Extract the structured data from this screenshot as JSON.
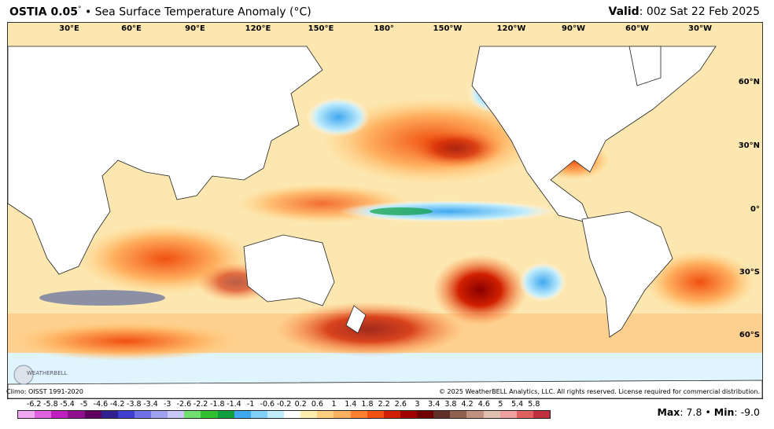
{
  "header": {
    "model": "OSTIA 0.05",
    "degree": "°",
    "bullet": "•",
    "product": "Sea Surface Temperature Anomaly (°C)",
    "valid_label": "Valid",
    "valid_value": ": 00z Sat 22 Feb 2025"
  },
  "map": {
    "lon_labels": [
      "30°E",
      "60°E",
      "90°E",
      "120°E",
      "150°E",
      "180°",
      "150°W",
      "120°W",
      "90°W",
      "60°W",
      "30°W"
    ],
    "lat_labels": [
      "60°N",
      "30°N",
      "0°",
      "30°S",
      "60°S"
    ],
    "logo_text": "WEATHERBELL"
  },
  "footer": {
    "climo": "Climo: OISST 1991-2020",
    "copyright": "© 2025 WeatherBELL Analytics, LLC. All rights reserved. License required for commercial distribution."
  },
  "colorbar": {
    "labels": [
      "-6.2",
      "-5.8",
      "-5.4",
      "-5",
      "-4.6",
      "-4.2",
      "-3.8",
      "-3.4",
      "-3",
      "-2.6",
      "-2.2",
      "-1.8",
      "-1.4",
      "-1",
      "-0.6",
      "-0.2",
      "0.2",
      "0.6",
      "1",
      "1.4",
      "1.8",
      "2.2",
      "2.6",
      "3",
      "3.4",
      "3.8",
      "4.2",
      "4.6",
      "5",
      "5.4",
      "5.8"
    ],
    "colors": [
      "#f0a8f0",
      "#e060e0",
      "#c020c0",
      "#901090",
      "#600060",
      "#302090",
      "#4040d0",
      "#7070e8",
      "#a0a0f0",
      "#c8c8f8",
      "#70e070",
      "#30c030",
      "#10a040",
      "#40a8f0",
      "#80d0f8",
      "#c0ecfc",
      "#ffffff",
      "#fff0b0",
      "#ffd080",
      "#ffb060",
      "#ff8030",
      "#f05010",
      "#d02000",
      "#a00000",
      "#700000",
      "#603028",
      "#906050",
      "#c09080",
      "#e0c0b0",
      "#f0a0a0",
      "#e06060",
      "#c03040"
    ]
  },
  "stats": {
    "max_label": "Max",
    "max_value": ": 7.8",
    "sep": "•",
    "min_label": "Min",
    "min_value": ": -9.0"
  }
}
